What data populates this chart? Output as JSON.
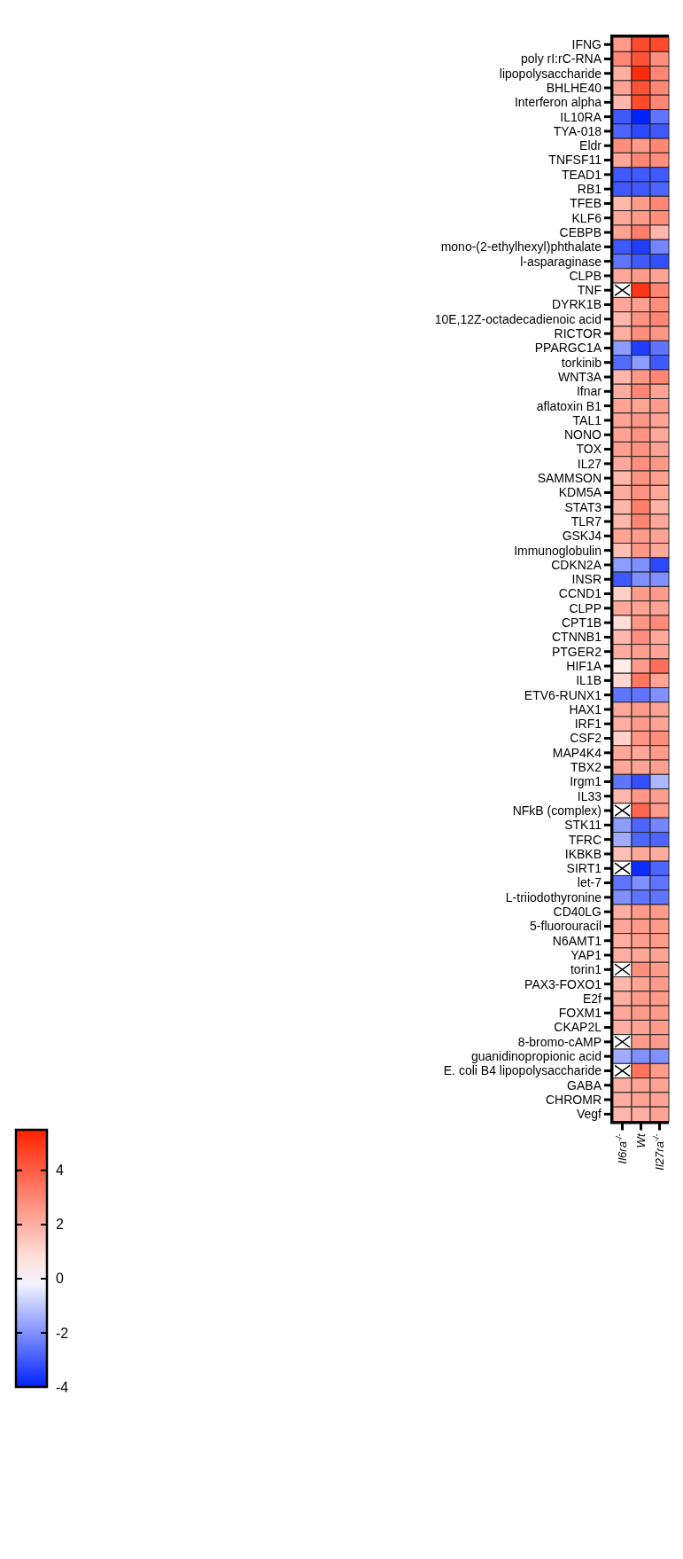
{
  "chart_data": {
    "type": "heatmap",
    "categories": [
      "Il6ra$^{-/-}$",
      "Wt",
      "Il27ra$^{-/-}$"
    ],
    "y_categories": [
      "IFNG",
      "poly rI:rC-RNA",
      "lipopolysaccharide",
      "BHLHE40",
      "Interferon alpha",
      "IL10RA",
      "TYA-018",
      "Eldr",
      "TNFSF11",
      "TEAD1",
      "RB1",
      "TFEB",
      "KLF6",
      "CEBPB",
      "mono-(2-ethylhexyl)phthalate",
      "l-asparaginase",
      "CLPB",
      "TNF",
      "DYRK1B",
      "10E,12Z-octadecadienoic acid",
      "RICTOR",
      "PPARGC1A",
      "torkinib",
      "WNT3A",
      "Ifnar",
      "aflatoxin B1",
      "TAL1",
      "NONO",
      "TOX",
      "IL27",
      "SAMMSON",
      "KDM5A",
      "STAT3",
      "TLR7",
      "GSKJ4",
      "Immunoglobulin",
      "CDKN2A",
      "INSR",
      "CCND1",
      "CLPP",
      "CPT1B",
      "CTNNB1",
      "PTGER2",
      "HIF1A",
      "IL1B",
      "ETV6-RUNX1",
      "HAX1",
      "IRF1",
      "CSF2",
      "MAP4K4",
      "TBX2",
      "Irgm1",
      "IL33",
      "NFkB (complex)",
      "STK11",
      "TFRC",
      "IKBKB",
      "SIRT1",
      "let-7",
      "L-triiodothyronine",
      "CD40LG",
      "5-fluorouracil",
      "N6AMT1",
      "YAP1",
      "torin1",
      "PAX3-FOXO1",
      "E2f",
      "FOXM1",
      "CKAP2L",
      "8-bromo-cAMP",
      "guanidinopropionic acid",
      "E. coli B4 lipopolysaccharide",
      "GABA",
      "CHROMR",
      "Vegf"
    ],
    "cells": [
      [
        2.5,
        4.5,
        4.5
      ],
      [
        3,
        4.3,
        2.8
      ],
      [
        2,
        5.3,
        3
      ],
      [
        2.3,
        4.3,
        3
      ],
      [
        1.8,
        4.5,
        3
      ],
      [
        -3,
        -4,
        -2.5
      ],
      [
        -2.8,
        -3.3,
        -3
      ],
      [
        2.8,
        2.5,
        3
      ],
      [
        2.2,
        3,
        2.8
      ],
      [
        -3,
        -3,
        -3
      ],
      [
        -3,
        -3,
        -2.8
      ],
      [
        1.8,
        2.5,
        3
      ],
      [
        2.2,
        2.5,
        2.8
      ],
      [
        2.3,
        3.2,
        1.8
      ],
      [
        -3,
        -3.5,
        -2.2
      ],
      [
        -2.5,
        -3,
        -3.2
      ],
      [
        2.2,
        2.5,
        2.3
      ],
      [
        null,
        5,
        3
      ],
      [
        2.2,
        2.4,
        2.8
      ],
      [
        1.8,
        2.7,
        3
      ],
      [
        2,
        2.8,
        2.6
      ],
      [
        -1.8,
        -3.5,
        -2.5
      ],
      [
        -2.7,
        -1.8,
        -3
      ],
      [
        1.8,
        2.6,
        3
      ],
      [
        2.1,
        3,
        2.3
      ],
      [
        2.3,
        2.3,
        2.5
      ],
      [
        2.3,
        2.6,
        2.3
      ],
      [
        2.3,
        2.7,
        2.2
      ],
      [
        2.4,
        2.7,
        2.3
      ],
      [
        2.2,
        2.8,
        2.6
      ],
      [
        1.8,
        2.7,
        2.4
      ],
      [
        2.1,
        2.7,
        2.2
      ],
      [
        1.8,
        3.2,
        1.9
      ],
      [
        1.8,
        3,
        2.2
      ],
      [
        2.3,
        2.5,
        2.3
      ],
      [
        1.6,
        2.6,
        2.2
      ],
      [
        -1.8,
        -2,
        -3.3
      ],
      [
        -3,
        -2,
        -2
      ],
      [
        1.2,
        2.5,
        2.5
      ],
      [
        2.2,
        2.3,
        2.3
      ],
      [
        0.8,
        2.6,
        2.9
      ],
      [
        1.8,
        2.8,
        2.2
      ],
      [
        2.1,
        2.4,
        2.3
      ],
      [
        0.5,
        2.5,
        3.6
      ],
      [
        1,
        3.4,
        2.3
      ],
      [
        -2.5,
        -2.5,
        -2
      ],
      [
        2.2,
        2.5,
        2.3
      ],
      [
        2,
        2.5,
        2.3
      ],
      [
        1.1,
        2.6,
        2.8
      ],
      [
        2.2,
        2.2,
        2.5
      ],
      [
        2.2,
        2.3,
        2.4
      ],
      [
        -2.5,
        -3.2,
        -1.3
      ],
      [
        1.8,
        2.6,
        2.4
      ],
      [
        null,
        3.8,
        2.5
      ],
      [
        -1.8,
        -2.8,
        -2.2
      ],
      [
        -1.5,
        -2.8,
        -2.8
      ],
      [
        1.6,
        2.2,
        2.1
      ],
      [
        null,
        -3.8,
        -2.8
      ],
      [
        -2.5,
        -2,
        -2.5
      ],
      [
        -2,
        -2.5,
        -2.5
      ],
      [
        2,
        2.5,
        2.5
      ],
      [
        2.2,
        2.5,
        2.5
      ],
      [
        2,
        2.4,
        2.5
      ],
      [
        2,
        2.2,
        2.3
      ],
      [
        null,
        2.8,
        2.5
      ],
      [
        1.8,
        2.3,
        2.5
      ],
      [
        2,
        2.5,
        2.5
      ],
      [
        2.2,
        2.5,
        2.5
      ],
      [
        2,
        2.3,
        2.5
      ],
      [
        null,
        2.5,
        2.5
      ],
      [
        -1.5,
        -2,
        -2
      ],
      [
        null,
        3.5,
        2.5
      ],
      [
        2,
        2.3,
        2.3
      ],
      [
        2,
        2.3,
        2.3
      ],
      [
        1.8,
        2,
        2.3
      ]
    ],
    "clim": [
      -4,
      5.5
    ],
    "cticks": [
      -4,
      -2,
      0,
      2,
      4
    ]
  }
}
